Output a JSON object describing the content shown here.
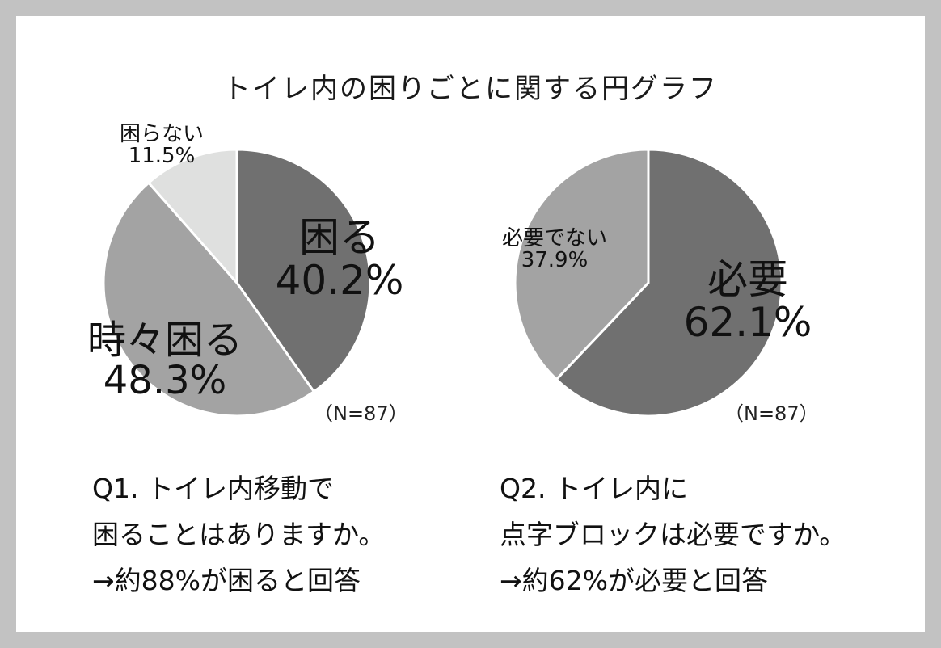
{
  "title": "トイレ内の困りごとに関する円グラフ",
  "colors": {
    "dark": "#707070",
    "mid": "#a3a3a3",
    "light": "#dfe0df",
    "stroke": "#ffffff"
  },
  "chart_data": [
    {
      "type": "pie",
      "n_label": "（N=87）",
      "slices": [
        {
          "label": "困る",
          "value": 40.2,
          "value_text": "40.2%",
          "color": "#707070"
        },
        {
          "label": "時々困る",
          "value": 48.3,
          "value_text": "48.3%",
          "color": "#a3a3a3"
        },
        {
          "label": "困らない",
          "value": 11.5,
          "value_text": "11.5%",
          "color": "#dfe0df"
        }
      ],
      "question": [
        "Q1. トイレ内移動で",
        "困ることはありますか。",
        "→約88%が困ると回答"
      ]
    },
    {
      "type": "pie",
      "n_label": "（N=87）",
      "slices": [
        {
          "label": "必要",
          "value": 62.1,
          "value_text": "62.1%",
          "color": "#707070"
        },
        {
          "label": "必要でない",
          "value": 37.9,
          "value_text": "37.9%",
          "color": "#a3a3a3"
        }
      ],
      "question": [
        "Q2.  トイレ内に",
        "点字ブロックは必要ですか。",
        "→約62%が必要と回答"
      ]
    }
  ]
}
